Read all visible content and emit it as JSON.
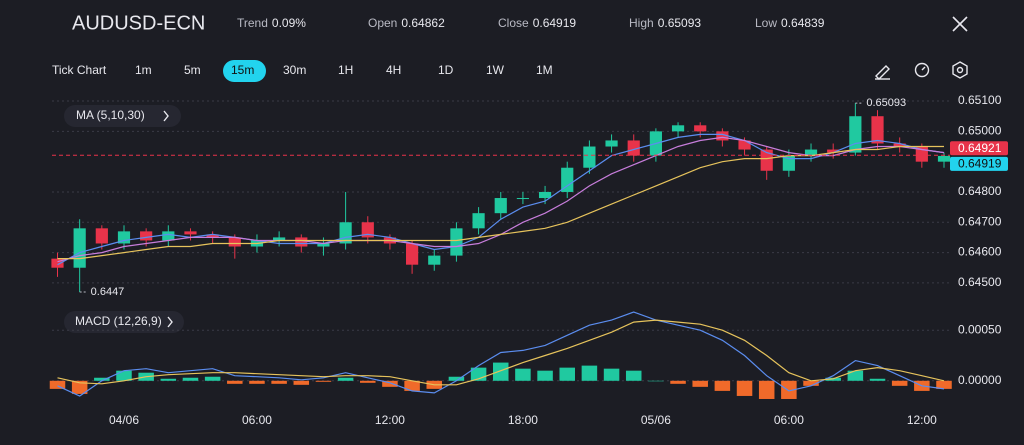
{
  "header": {
    "title": "AUDUSD-ECN",
    "stats": [
      {
        "label": "Trend",
        "value": "0.09%"
      },
      {
        "label": "Open",
        "value": "0.64862"
      },
      {
        "label": "Close",
        "value": "0.64919"
      },
      {
        "label": "High",
        "value": "0.65093"
      },
      {
        "label": "Low",
        "value": "0.64839"
      }
    ]
  },
  "timeframes": [
    {
      "label": "Tick Chart"
    },
    {
      "label": "1m"
    },
    {
      "label": "5m"
    },
    {
      "label": "15m",
      "selected": true
    },
    {
      "label": "30m"
    },
    {
      "label": "1H"
    },
    {
      "label": "4H"
    },
    {
      "label": "1D"
    },
    {
      "label": "1W"
    },
    {
      "label": "1M"
    }
  ],
  "chart_data": {
    "type": "candlestick",
    "categories": [
      null,
      null,
      null,
      "04/06",
      null,
      null,
      null,
      null,
      null,
      "06:00",
      null,
      null,
      null,
      null,
      null,
      "12:00",
      null,
      null,
      null,
      null,
      null,
      "18:00",
      null,
      null,
      null,
      null,
      null,
      "05/06",
      null,
      null,
      null,
      null,
      null,
      "06:00",
      null,
      null,
      null,
      null,
      null,
      "12:00",
      null
    ],
    "open": [
      0.6458,
      0.6455,
      0.6468,
      0.6463,
      0.6467,
      0.6464,
      0.6467,
      0.6466,
      0.6465,
      0.6462,
      0.6464,
      0.6465,
      0.6462,
      0.6463,
      0.647,
      0.6465,
      0.6463,
      0.6456,
      0.6459,
      0.6468,
      0.6473,
      0.6478,
      0.6478,
      0.648,
      0.6488,
      0.6495,
      0.6497,
      0.6492,
      0.65,
      0.6502,
      0.65,
      0.6497,
      0.6494,
      0.6487,
      0.6492,
      0.6494,
      0.6493,
      0.6505,
      0.6496,
      0.6495,
      0.649
    ],
    "high": [
      0.646,
      0.6471,
      0.6469,
      0.6469,
      0.6468,
      0.6469,
      0.6468,
      0.6467,
      0.6466,
      0.6466,
      0.6467,
      0.6466,
      0.6465,
      0.648,
      0.6472,
      0.6466,
      0.6464,
      0.6461,
      0.647,
      0.6475,
      0.648,
      0.648,
      0.6482,
      0.649,
      0.6497,
      0.6499,
      0.6499,
      0.6501,
      0.6503,
      0.6503,
      0.6501,
      0.6498,
      0.6495,
      0.6494,
      0.6496,
      0.6496,
      0.65093,
      0.6507,
      0.6498,
      0.6496,
      0.6493
    ],
    "low": [
      0.6452,
      0.6447,
      0.6461,
      0.6461,
      0.6462,
      0.6462,
      0.6464,
      0.6463,
      0.6458,
      0.646,
      0.6462,
      0.646,
      0.6459,
      0.6461,
      0.6463,
      0.6461,
      0.6453,
      0.6454,
      0.6457,
      0.6466,
      0.6471,
      0.6476,
      0.6476,
      0.6478,
      0.6486,
      0.6493,
      0.649,
      0.649,
      0.6498,
      0.6498,
      0.6495,
      0.6492,
      0.6484,
      0.6485,
      0.649,
      0.6491,
      0.6492,
      0.6494,
      0.6493,
      0.6488,
      0.6488
    ],
    "close": [
      0.6455,
      0.6468,
      0.6463,
      0.6467,
      0.6464,
      0.6467,
      0.6466,
      0.6465,
      0.6462,
      0.6464,
      0.6465,
      0.6462,
      0.6463,
      0.647,
      0.6465,
      0.6463,
      0.6456,
      0.6459,
      0.6468,
      0.6473,
      0.6478,
      0.6478,
      0.648,
      0.6488,
      0.6495,
      0.6497,
      0.6492,
      0.65,
      0.6502,
      0.65,
      0.6497,
      0.6494,
      0.6487,
      0.6492,
      0.6494,
      0.6493,
      0.6505,
      0.6496,
      0.6495,
      0.649,
      0.64919
    ],
    "up_color": "#20c9a0",
    "down_color": "#e8334a",
    "ylim": [
      0.6446,
      0.6512
    ],
    "yticks": [
      {
        "value": 0.651,
        "label": "0.65100"
      },
      {
        "value": 0.65,
        "label": "0.65000"
      },
      {
        "value": 0.648,
        "label": "0.64800"
      },
      {
        "value": 0.647,
        "label": "0.64700"
      },
      {
        "value": 0.646,
        "label": "0.64600"
      },
      {
        "value": 0.645,
        "label": "0.64500"
      }
    ],
    "grid": true,
    "ma": {
      "label": "MA (5,10,30)",
      "lines": [
        {
          "color": "#5b8def",
          "values": [
            0.6456,
            0.646,
            0.6462,
            0.6464,
            0.6465,
            0.6466,
            0.6465,
            0.6466,
            0.6465,
            0.6464,
            0.6463,
            0.6463,
            0.6463,
            0.6465,
            0.6466,
            0.6465,
            0.6463,
            0.6461,
            0.6462,
            0.6465,
            0.6471,
            0.6475,
            0.6477,
            0.6482,
            0.6487,
            0.6492,
            0.6494,
            0.6496,
            0.6498,
            0.6499,
            0.6499,
            0.6497,
            0.6493,
            0.6491,
            0.6491,
            0.6493,
            0.6496,
            0.6497,
            0.6496,
            0.6494,
            0.6493
          ]
        },
        {
          "color": "#c77ddb",
          "values": [
            0.6457,
            0.6459,
            0.646,
            0.6462,
            0.6463,
            0.6464,
            0.6465,
            0.6465,
            0.6465,
            0.6464,
            0.6464,
            0.6464,
            0.6463,
            0.6464,
            0.6464,
            0.6464,
            0.6463,
            0.6462,
            0.6462,
            0.6463,
            0.6466,
            0.647,
            0.6473,
            0.6477,
            0.6482,
            0.6486,
            0.6489,
            0.6492,
            0.6495,
            0.6497,
            0.6498,
            0.6497,
            0.6495,
            0.6493,
            0.6492,
            0.6492,
            0.6494,
            0.6495,
            0.6495,
            0.6494,
            0.6493
          ]
        },
        {
          "color": "#e6c35c",
          "values": [
            0.6458,
            0.6458,
            0.6459,
            0.646,
            0.6461,
            0.6462,
            0.6462,
            0.6463,
            0.6463,
            0.6463,
            0.6464,
            0.6464,
            0.6464,
            0.6464,
            0.6464,
            0.6464,
            0.6464,
            0.6464,
            0.6464,
            0.6465,
            0.6466,
            0.6467,
            0.6468,
            0.647,
            0.6473,
            0.6476,
            0.6479,
            0.6482,
            0.6485,
            0.6488,
            0.649,
            0.6491,
            0.6491,
            0.6492,
            0.6492,
            0.6493,
            0.6494,
            0.6494,
            0.6495,
            0.6495,
            0.6495
          ]
        }
      ]
    },
    "price_lines": [
      {
        "value": 0.64921,
        "color": "#e8334a",
        "dashed": true
      },
      {
        "value": 0.64919,
        "color": "#22d3ee"
      }
    ],
    "annotations": [
      {
        "index": 36,
        "value": 0.65093
      },
      {
        "index": 1,
        "value": 0.6447
      }
    ],
    "macd": {
      "label": "MACD (12,26,9)",
      "ylim": [
        -0.00019,
        0.0007
      ],
      "yticks": [
        {
          "value": 0.0005,
          "label": "0.00050"
        },
        {
          "value": 0,
          "label": "0.00000"
        }
      ],
      "macd_line": {
        "color": "#5b8def",
        "values": [
          -5e-05,
          -0.00015,
          0.0,
          0.0001,
          0.00012,
          8e-05,
          0.0001,
          0.00012,
          5e-05,
          4e-05,
          3e-05,
          1e-05,
          3e-05,
          8e-05,
          3e-05,
          -2e-05,
          -0.0001,
          -0.00012,
          0.0,
          0.00015,
          0.00028,
          0.0003,
          0.00035,
          0.00045,
          0.00055,
          0.0006,
          0.00068,
          0.0006,
          0.00055,
          0.0005,
          0.0004,
          0.00025,
          5e-05,
          -0.0001,
          -5e-05,
          5e-05,
          0.0002,
          0.00015,
          5e-05,
          -5e-05,
          -8e-05
        ]
      },
      "signal_line": {
        "color": "#e6c35c",
        "values": [
          3e-05,
          -2e-05,
          -3e-05,
          0.0,
          4e-05,
          6e-05,
          7e-05,
          8e-05,
          8e-05,
          7e-05,
          6e-05,
          5e-05,
          4e-05,
          5e-05,
          5e-05,
          4e-05,
          0.0,
          -4e-05,
          -4e-05,
          2e-05,
          0.0001,
          0.00018,
          0.00025,
          0.00032,
          0.0004,
          0.00048,
          0.00058,
          0.0006,
          0.00058,
          0.00056,
          0.0005,
          0.0004,
          0.00025,
          8e-05,
          0.0,
          2e-05,
          0.0001,
          0.00013,
          0.0001,
          5e-05,
          0.0
        ]
      },
      "histogram": {
        "up_color": "#20c9a0",
        "down_color": "#f06a2a",
        "values": [
          -8e-05,
          -0.00013,
          3e-05,
          0.0001,
          8e-05,
          2e-05,
          3e-05,
          4e-05,
          -3e-05,
          -3e-05,
          -3e-05,
          -4e-05,
          -1e-05,
          3e-05,
          -2e-05,
          -6e-05,
          -0.0001,
          -8e-05,
          4e-05,
          0.00013,
          0.00018,
          0.00012,
          0.0001,
          0.00013,
          0.00015,
          0.00012,
          0.0001,
          0.0,
          -3e-05,
          -6e-05,
          -0.0001,
          -0.00015,
          -0.00018,
          -0.00018,
          -5e-05,
          3e-05,
          0.0001,
          2e-05,
          -5e-05,
          -0.0001,
          -8e-05
        ]
      }
    }
  }
}
